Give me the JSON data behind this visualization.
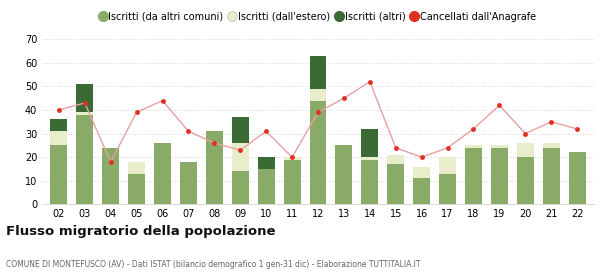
{
  "years": [
    "02",
    "03",
    "04",
    "05",
    "06",
    "07",
    "08",
    "09",
    "10",
    "11",
    "12",
    "13",
    "14",
    "15",
    "16",
    "17",
    "18",
    "19",
    "20",
    "21",
    "22"
  ],
  "iscritti_altri_comuni": [
    25,
    38,
    24,
    13,
    26,
    18,
    31,
    14,
    15,
    19,
    44,
    25,
    19,
    17,
    11,
    13,
    24,
    24,
    20,
    24,
    22
  ],
  "iscritti_estero": [
    6,
    1,
    0,
    5,
    0,
    0,
    0,
    12,
    0,
    1,
    5,
    0,
    1,
    4,
    5,
    7,
    1,
    1,
    6,
    2,
    0
  ],
  "iscritti_altri": [
    5,
    12,
    0,
    0,
    0,
    0,
    0,
    11,
    5,
    0,
    14,
    0,
    12,
    0,
    0,
    0,
    0,
    0,
    0,
    0,
    0
  ],
  "cancellati": [
    40,
    43,
    18,
    39,
    44,
    31,
    26,
    23,
    31,
    20,
    39,
    45,
    52,
    24,
    20,
    24,
    32,
    42,
    30,
    35,
    32
  ],
  "color_altri_comuni": "#8aaa68",
  "color_estero": "#e8edcc",
  "color_altri": "#3a6b35",
  "color_cancellati": "#e03020",
  "color_line": "#e8a0a0",
  "ylim": [
    0,
    70
  ],
  "yticks": [
    0,
    10,
    20,
    30,
    40,
    50,
    60,
    70
  ],
  "title": "Flusso migratorio della popolazione",
  "subtitle": "COMUNE DI MONTEFUSCO (AV) - Dati ISTAT (bilancio demografico 1 gen-31 dic) - Elaborazione TUTTITALIA.IT",
  "legend_labels": [
    "Iscritti (da altri comuni)",
    "Iscritti (dall'estero)",
    "Iscritti (altri)",
    "Cancellati dall'Anagrafe"
  ],
  "background_color": "#ffffff"
}
